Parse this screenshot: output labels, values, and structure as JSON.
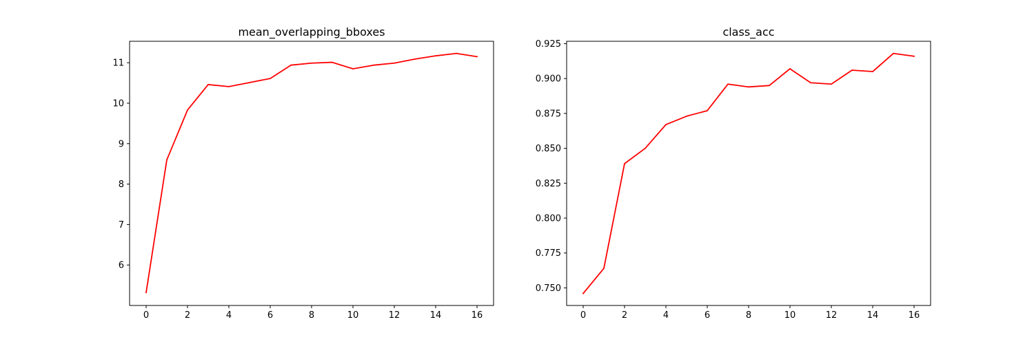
{
  "figure": {
    "background": "#ffffff"
  },
  "chart_data": [
    {
      "type": "line",
      "title": "mean_overlapping_bboxes",
      "xlabel": "",
      "ylabel": "",
      "x": [
        0,
        1,
        2,
        3,
        4,
        5,
        6,
        7,
        8,
        9,
        10,
        11,
        12,
        13,
        14,
        15,
        16
      ],
      "series": [
        {
          "color": "#ff0000",
          "values": [
            5.32,
            8.6,
            9.83,
            10.46,
            10.41,
            10.51,
            10.61,
            10.94,
            10.99,
            11.01,
            10.85,
            10.94,
            10.99,
            11.09,
            11.17,
            11.23,
            11.15
          ]
        }
      ],
      "xlim": [
        -0.8,
        16.8
      ],
      "ylim": [
        5.0,
        11.53
      ],
      "xticks": [
        0,
        2,
        4,
        6,
        8,
        10,
        12,
        14,
        16
      ],
      "yticks": [
        6,
        7,
        8,
        9,
        10,
        11
      ],
      "ytick_labels": [
        "6",
        "7",
        "8",
        "9",
        "10",
        "11"
      ],
      "grid": false,
      "legend": "none"
    },
    {
      "type": "line",
      "title": "class_acc",
      "xlabel": "",
      "ylabel": "",
      "x": [
        0,
        1,
        2,
        3,
        4,
        5,
        6,
        7,
        8,
        9,
        10,
        11,
        12,
        13,
        14,
        15,
        16
      ],
      "series": [
        {
          "color": "#ff0000",
          "values": [
            0.746,
            0.764,
            0.839,
            0.85,
            0.867,
            0.873,
            0.877,
            0.896,
            0.894,
            0.895,
            0.907,
            0.897,
            0.896,
            0.906,
            0.905,
            0.918,
            0.916
          ]
        }
      ],
      "xlim": [
        -0.8,
        16.8
      ],
      "ylim": [
        0.7374,
        0.9267
      ],
      "xticks": [
        0,
        2,
        4,
        6,
        8,
        10,
        12,
        14,
        16
      ],
      "yticks": [
        0.75,
        0.775,
        0.8,
        0.825,
        0.85,
        0.875,
        0.9,
        0.925
      ],
      "ytick_labels": [
        "0.750",
        "0.775",
        "0.800",
        "0.825",
        "0.850",
        "0.875",
        "0.900",
        "0.925"
      ],
      "grid": false,
      "legend": "none"
    }
  ]
}
